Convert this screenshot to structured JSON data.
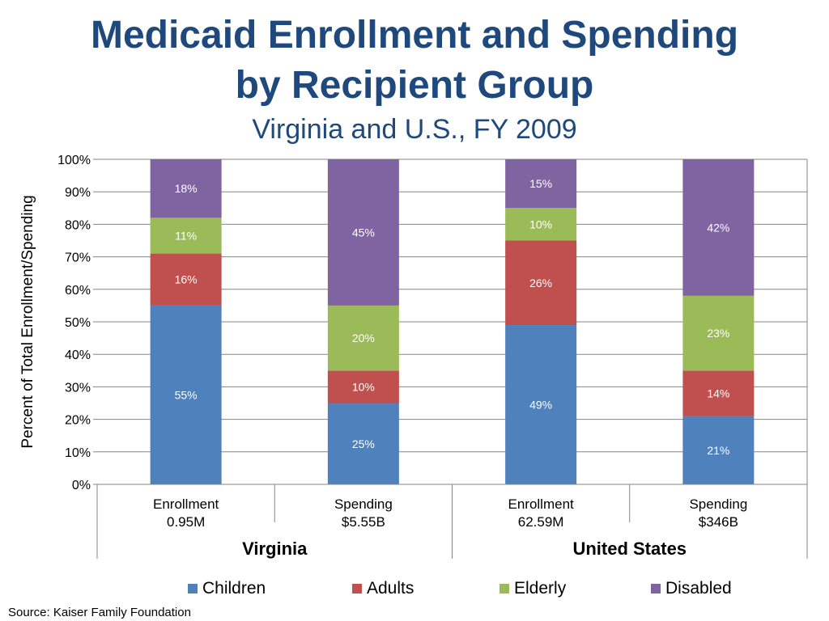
{
  "title_line1": "Medicaid Enrollment and Spending",
  "title_line2": "by Recipient Group",
  "subtitle": "Virginia and U.S., FY 2009",
  "source": "Source: Kaiser Family Foundation",
  "colors": {
    "Children": "#4f81bd",
    "Adults": "#c0504d",
    "Elderly": "#9bbb59",
    "Disabled": "#8064a2",
    "title": "#1f497d",
    "grid": "#868686"
  },
  "chart_data": {
    "type": "bar",
    "stacked": true,
    "ylabel": "Percent of Total Enrollment/Spending",
    "ylim": [
      0,
      100
    ],
    "yticks": [
      "0%",
      "10%",
      "20%",
      "30%",
      "40%",
      "50%",
      "60%",
      "70%",
      "80%",
      "90%",
      "100%"
    ],
    "grid": true,
    "legend_position": "bottom",
    "categories": [
      {
        "line1": "Enrollment",
        "line2": "0.95M",
        "group": "Virginia"
      },
      {
        "line1": "Spending",
        "line2": "$5.55B",
        "group": "Virginia"
      },
      {
        "line1": "Enrollment",
        "line2": "62.59M",
        "group": "United States"
      },
      {
        "line1": "Spending",
        "line2": "$346B",
        "group": "United States"
      }
    ],
    "groups": [
      "Virginia",
      "United States"
    ],
    "series": [
      {
        "name": "Children",
        "values": [
          55,
          25,
          49,
          21
        ],
        "labels": [
          "55%",
          "25%",
          "49%",
          "21%"
        ]
      },
      {
        "name": "Adults",
        "values": [
          16,
          10,
          26,
          14
        ],
        "labels": [
          "16%",
          "10%",
          "26%",
          "14%"
        ]
      },
      {
        "name": "Elderly",
        "values": [
          11,
          20,
          10,
          23
        ],
        "labels": [
          "11%",
          "20%",
          "10%",
          "23%"
        ]
      },
      {
        "name": "Disabled",
        "values": [
          18,
          45,
          15,
          42
        ],
        "labels": [
          "18%",
          "45%",
          "15%",
          "42%"
        ]
      }
    ]
  }
}
